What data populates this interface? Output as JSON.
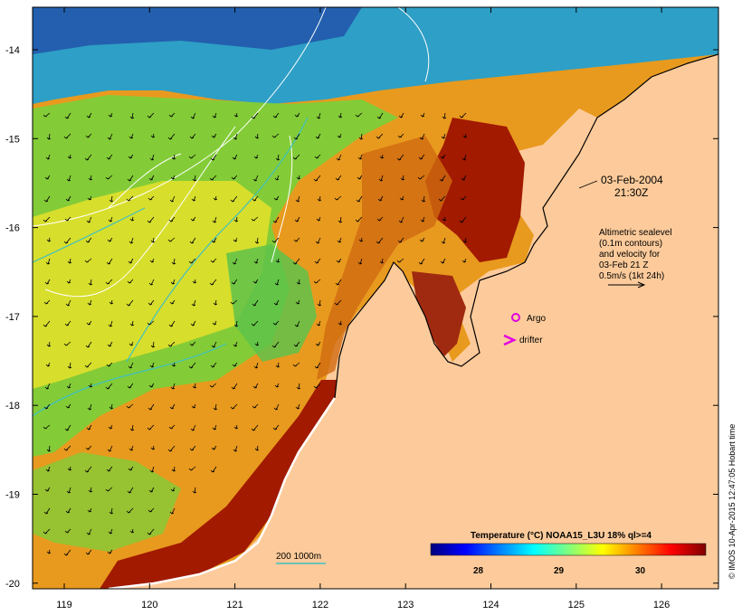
{
  "map": {
    "date_line1": "03-Feb-2004",
    "date_line2": "21:30Z",
    "info_lines": [
      "Altimetric sealevel",
      "(0.1m contours)",
      "and velocity for",
      "03-Feb 21 Z",
      "0.5m/s (1kt 24h)"
    ],
    "argo_label": "Argo",
    "drifter_label": "drifter",
    "scale_label": "200 1000m",
    "colorbar_title": "Temperature (°C) NOAA15_L3U 18% ql>=4",
    "colorbar_ticks": [
      "28",
      "29",
      "30"
    ],
    "colorbar_colors": [
      "#00007f",
      "#0000ff",
      "#007fff",
      "#00ffff",
      "#7fff7f",
      "#ffff00",
      "#ff7f00",
      "#ff0000",
      "#7f0000"
    ],
    "credit": "© IMOS 10-Apr-2015 12:47:05 Hobart time",
    "lat_ticks": [
      "-14",
      "-15",
      "-16",
      "-17",
      "-18",
      "-19",
      "-20"
    ],
    "lon_ticks": [
      "119",
      "120",
      "121",
      "122",
      "123",
      "124",
      "125",
      "126"
    ],
    "colors": {
      "land": "#fdcb9b",
      "argo": "#e000e0",
      "drifter": "#e000e0",
      "coast": "#000000",
      "contour": "#ffffff",
      "isobath": "#40c0c0"
    }
  }
}
